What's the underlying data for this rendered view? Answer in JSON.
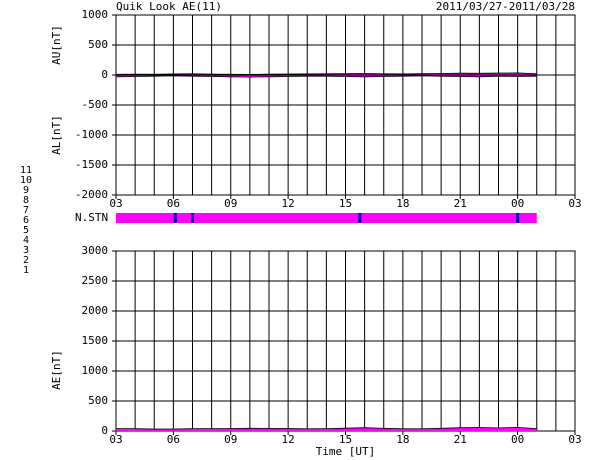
{
  "header": {
    "title": "Quik Look AE(11)",
    "date_range": "2011/03/27-2011/03/28"
  },
  "legend": [
    {
      "label": "11",
      "color": "#00e0e0"
    },
    {
      "label": "10",
      "color": "#ff00ff"
    },
    {
      "label": "9",
      "color": "#0000ff"
    },
    {
      "label": "8",
      "color": "#e8e800"
    },
    {
      "label": "7",
      "color": "#80e000"
    },
    {
      "label": "6",
      "color": "#ff0000"
    },
    {
      "label": "5",
      "color": "#b0b0b0"
    },
    {
      "label": "4",
      "color": "#40c0c0"
    },
    {
      "label": "3",
      "color": "#008080"
    },
    {
      "label": "2",
      "color": "#a000a0"
    },
    {
      "label": "1",
      "color": "#3030ff"
    }
  ],
  "n_stn": {
    "label": "N.STN",
    "color": "#ff00ff",
    "mark_color": "#0000c0",
    "xlim": [
      0,
      22
    ],
    "marks": [
      3.1,
      4.0,
      12.75,
      21.0
    ]
  },
  "chart_data": [
    {
      "type": "area",
      "ylabels": [
        "AU[nT]",
        "AL[nT]"
      ],
      "x": [
        0,
        1,
        2,
        3,
        4,
        5,
        6,
        7,
        8,
        9,
        10,
        11,
        12,
        13,
        14,
        15,
        16,
        17,
        18,
        19,
        20,
        21,
        22
      ],
      "series": [
        {
          "name": "AU",
          "color": "#ff00ff",
          "values": [
            10,
            15,
            12,
            18,
            20,
            15,
            12,
            10,
            14,
            16,
            18,
            20,
            22,
            25,
            20,
            18,
            22,
            25,
            30,
            28,
            32,
            35,
            20
          ]
        },
        {
          "name": "AL",
          "color": "#ff00ff",
          "values": [
            -30,
            -25,
            -20,
            -15,
            -20,
            -25,
            -30,
            -35,
            -30,
            -25,
            -20,
            -20,
            -25,
            -30,
            -25,
            -20,
            -15,
            -20,
            -25,
            -30,
            -20,
            -25,
            -20
          ]
        }
      ],
      "xlim": [
        0,
        24
      ],
      "xticks": [
        {
          "value": 0,
          "label": "03"
        },
        {
          "value": 3,
          "label": "06"
        },
        {
          "value": 6,
          "label": "09"
        },
        {
          "value": 9,
          "label": "12"
        },
        {
          "value": 12,
          "label": "15"
        },
        {
          "value": 15,
          "label": "18"
        },
        {
          "value": 18,
          "label": "21"
        },
        {
          "value": 21,
          "label": "00"
        },
        {
          "value": 24,
          "label": "03"
        }
      ],
      "ylim": [
        -2000,
        1000
      ],
      "yticks": [
        -2000,
        -1500,
        -1000,
        -500,
        0,
        500,
        1000
      ]
    },
    {
      "type": "area",
      "ylabels": [
        "AE[nT]"
      ],
      "xlabel": "Time [UT]",
      "x": [
        0,
        1,
        2,
        3,
        4,
        5,
        6,
        7,
        8,
        9,
        10,
        11,
        12,
        13,
        14,
        15,
        16,
        17,
        18,
        19,
        20,
        21,
        22
      ],
      "series": [
        {
          "name": "AE",
          "color": "#ff00ff",
          "values": [
            40,
            40,
            32,
            33,
            40,
            40,
            42,
            45,
            44,
            41,
            38,
            40,
            47,
            55,
            45,
            38,
            37,
            45,
            55,
            58,
            52,
            60,
            40
          ]
        }
      ],
      "xlim": [
        0,
        24
      ],
      "xticks": [
        {
          "value": 0,
          "label": "03"
        },
        {
          "value": 3,
          "label": "06"
        },
        {
          "value": 6,
          "label": "09"
        },
        {
          "value": 9,
          "label": "12"
        },
        {
          "value": 12,
          "label": "15"
        },
        {
          "value": 15,
          "label": "18"
        },
        {
          "value": 18,
          "label": "21"
        },
        {
          "value": 21,
          "label": "00"
        },
        {
          "value": 24,
          "label": "03"
        }
      ],
      "ylim": [
        0,
        3000
      ],
      "yticks": [
        0,
        500,
        1000,
        1500,
        2000,
        2500,
        3000
      ]
    }
  ]
}
